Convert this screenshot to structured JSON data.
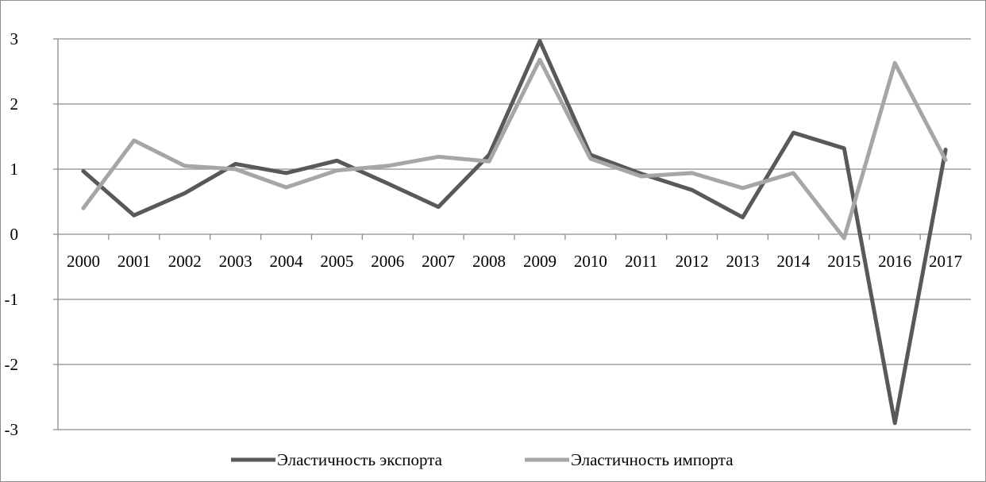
{
  "chart_data": {
    "type": "line",
    "title": "",
    "xlabel": "",
    "ylabel": "",
    "categories": [
      "2000",
      "2001",
      "2002",
      "2003",
      "2004",
      "2005",
      "2006",
      "2007",
      "2008",
      "2009",
      "2010",
      "2011",
      "2012",
      "2013",
      "2014",
      "2015",
      "2016",
      "2017"
    ],
    "ylim": [
      -3,
      3
    ],
    "yticks": [
      "3",
      "2",
      "1",
      "0",
      "-1",
      "-2",
      "-3"
    ],
    "grid": true,
    "legend_position": "bottom",
    "series": [
      {
        "name": "Эластичность экспорта",
        "color": "#595959",
        "values": [
          0.97,
          0.29,
          0.63,
          1.08,
          0.94,
          1.13,
          0.78,
          0.42,
          1.22,
          2.97,
          1.22,
          0.93,
          0.68,
          0.26,
          1.56,
          1.32,
          -2.9,
          1.3
        ]
      },
      {
        "name": "Эластичность импорта",
        "color": "#a6a6a6",
        "values": [
          0.4,
          1.44,
          1.05,
          1.0,
          0.72,
          0.98,
          1.05,
          1.19,
          1.12,
          2.68,
          1.16,
          0.89,
          0.94,
          0.71,
          0.94,
          -0.06,
          2.63,
          1.14
        ]
      }
    ]
  }
}
